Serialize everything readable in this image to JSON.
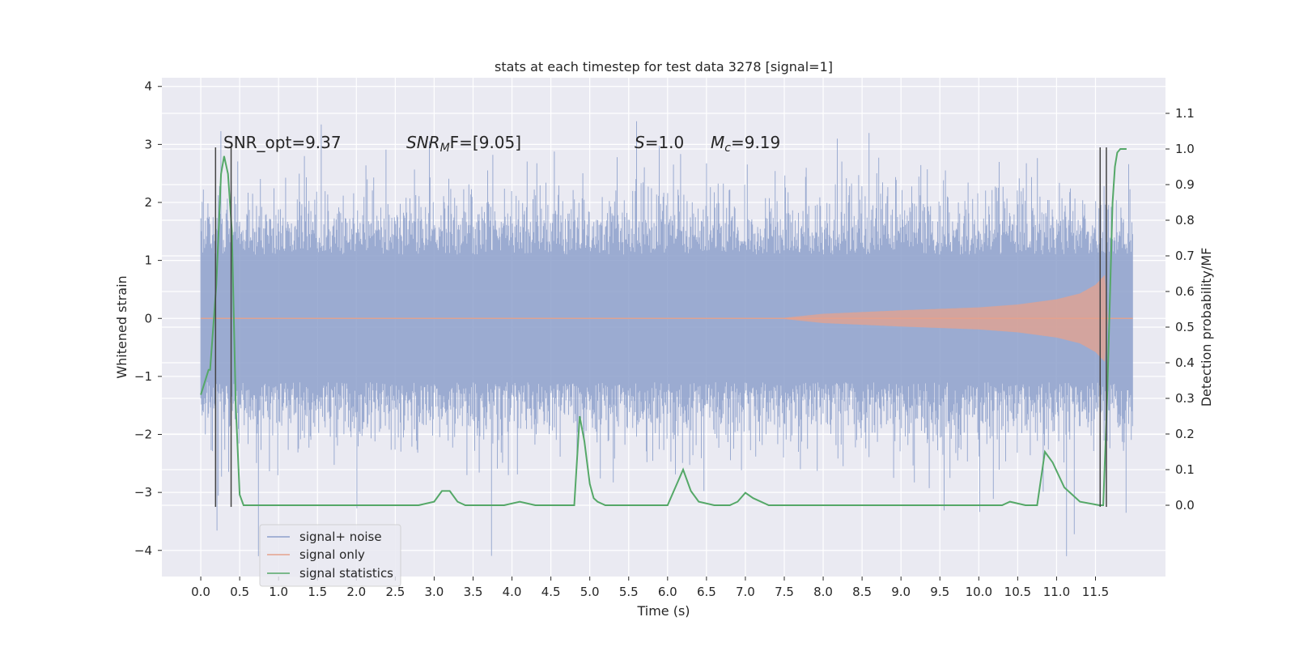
{
  "chart_data": {
    "type": "line",
    "title": "stats at each timestep for test data 3278 [signal=1]",
    "xlabel": "Time (s)",
    "ylabel": "Whitened strain",
    "ylabel_right": "Detection probability/MF",
    "xlim": [
      -0.5,
      12.4
    ],
    "ylim": [
      -4.45,
      4.15
    ],
    "ylim_right": [
      -0.2,
      1.2
    ],
    "grid": true,
    "x_ticks": [
      0.0,
      0.5,
      1.0,
      1.5,
      2.0,
      2.5,
      3.0,
      3.5,
      4.0,
      4.5,
      5.0,
      5.5,
      6.0,
      6.5,
      7.0,
      7.5,
      8.0,
      8.5,
      9.0,
      9.5,
      10.0,
      10.5,
      11.0,
      11.5
    ],
    "x_tick_labels": [
      "0.0",
      "0.5",
      "1.0",
      "1.5",
      "2.0",
      "2.5",
      "3.0",
      "3.5",
      "4.0",
      "4.5",
      "5.0",
      "5.5",
      "6.0",
      "6.5",
      "7.0",
      "7.5",
      "8.0",
      "8.5",
      "9.0",
      "9.5",
      "10.0",
      "10.5",
      "11.0",
      "11.5"
    ],
    "y_ticks": [
      4,
      3,
      2,
      1,
      0,
      -1,
      -2,
      -3,
      -4
    ],
    "y_tick_labels": [
      "4",
      "3",
      "2",
      "1",
      "0",
      "−1",
      "−2",
      "−3",
      "−4"
    ],
    "y_right_ticks": [
      1.1,
      1.0,
      0.9,
      0.8,
      0.7,
      0.6,
      0.5,
      0.4,
      0.3,
      0.2,
      0.1,
      0.0
    ],
    "y_right_tick_labels": [
      "1.1",
      "1.0",
      "0.9",
      "0.8",
      "0.7",
      "0.6",
      "0.5",
      "0.4",
      "0.3",
      "0.2",
      "0.1",
      "0.0"
    ],
    "annotations": {
      "snr_opt": "SNR_opt=9.37",
      "snr_mf_label": "SNR",
      "snr_mf_sub": "M",
      "snr_mf_rest": "F=[9.05]",
      "s_label": "S",
      "s_rest": "=1.0",
      "mc_label": "M",
      "mc_sub": "c",
      "mc_rest": "=9.19"
    },
    "legend_placement": "lower-left",
    "series": [
      {
        "name": "signal+ noise",
        "color": "#8da0cb",
        "x_range": [
          0.0,
          11.98
        ],
        "envelope": "approx. ±1.7 with spikes to ±3.8"
      },
      {
        "name": "signal only",
        "color": "#e5a28c",
        "x_range": [
          0.0,
          11.98
        ],
        "chirp_envelope": [
          [
            7.5,
            0.01
          ],
          [
            8.0,
            0.08
          ],
          [
            9.0,
            0.14
          ],
          [
            10.0,
            0.19
          ],
          [
            10.5,
            0.24
          ],
          [
            11.0,
            0.33
          ],
          [
            11.3,
            0.43
          ],
          [
            11.5,
            0.58
          ],
          [
            11.62,
            0.75
          ],
          [
            11.66,
            0.0
          ]
        ]
      },
      {
        "name": "signal statistics",
        "color": "#55a868",
        "axis": "right",
        "x": [
          0.0,
          0.1,
          0.12,
          0.2,
          0.26,
          0.3,
          0.35,
          0.4,
          0.45,
          0.5,
          0.55,
          0.6,
          0.8,
          1.0,
          2.8,
          3.0,
          3.1,
          3.2,
          3.3,
          3.4,
          3.9,
          4.1,
          4.3,
          4.5,
          4.8,
          4.87,
          4.93,
          5.0,
          5.05,
          5.1,
          5.2,
          5.3,
          5.5,
          5.8,
          6.0,
          6.1,
          6.2,
          6.3,
          6.4,
          6.6,
          6.8,
          6.9,
          7.0,
          7.1,
          7.3,
          7.5,
          8.0,
          8.5,
          9.3,
          9.6,
          10.0,
          10.3,
          10.4,
          10.6,
          10.75,
          10.85,
          10.95,
          11.1,
          11.3,
          11.55,
          11.6,
          11.65,
          11.72,
          11.75,
          11.78,
          11.82,
          11.9
        ],
        "y": [
          0.31,
          0.38,
          0.38,
          0.62,
          0.93,
          0.98,
          0.93,
          0.77,
          0.28,
          0.03,
          0.0,
          0.0,
          0.0,
          0.0,
          0.0,
          0.01,
          0.04,
          0.04,
          0.01,
          0.0,
          0.0,
          0.01,
          0.0,
          0.0,
          0.0,
          0.25,
          0.18,
          0.06,
          0.02,
          0.01,
          0.0,
          0.0,
          0.0,
          0.0,
          0.0,
          0.05,
          0.1,
          0.04,
          0.01,
          0.0,
          0.0,
          0.01,
          0.035,
          0.02,
          0.0,
          0.0,
          0.0,
          0.0,
          0.0,
          0.0,
          0.0,
          0.0,
          0.01,
          0.0,
          0.0,
          0.15,
          0.12,
          0.05,
          0.01,
          0.0,
          0.0,
          0.3,
          0.85,
          0.95,
          0.99,
          1.0,
          1.0
        ]
      }
    ],
    "vertical_markers": [
      {
        "x": 0.19,
        "ylim": [
          -3.25,
          2.95
        ]
      },
      {
        "x": 0.39,
        "ylim": [
          -3.25,
          2.95
        ]
      },
      {
        "x": 11.56,
        "ylim": [
          -3.25,
          2.95
        ]
      },
      {
        "x": 11.64,
        "ylim": [
          -3.25,
          2.95
        ]
      }
    ]
  }
}
